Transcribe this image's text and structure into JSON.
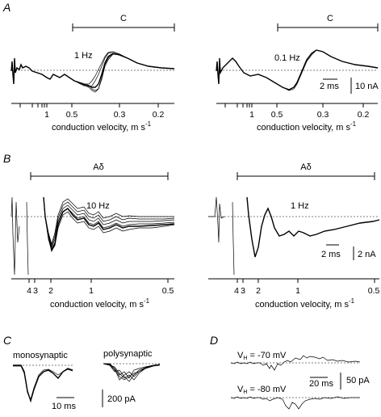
{
  "panels": {
    "A": {
      "label": "A",
      "left": {
        "bracket": "C",
        "freq": "1 Hz",
        "ticks": [
          "1",
          "0.5",
          "0.3",
          "0.2"
        ],
        "axis_label": "conduction velocity, m s",
        "axis_sup": "-1"
      },
      "right": {
        "bracket": "C",
        "freq": "0.1 Hz",
        "ticks": [
          "1",
          "0.5",
          "0.3",
          "0.2"
        ],
        "axis_label": "conduction velocity, m s",
        "axis_sup": "-1",
        "scale_time": "2 ms",
        "scale_amp": "10 nA"
      }
    },
    "B": {
      "label": "B",
      "left": {
        "bracket": "Aδ",
        "freq": "10 Hz",
        "ticks": [
          "4",
          "3",
          "2",
          "1",
          "0.5"
        ],
        "axis_label": "conduction velocity, m s",
        "axis_sup": "-1"
      },
      "right": {
        "bracket": "Aδ",
        "freq": "1 Hz",
        "ticks": [
          "4",
          "3",
          "2",
          "1",
          "0.5"
        ],
        "axis_label": "conduction velocity, m s",
        "axis_sup": "-1",
        "scale_time": "2 ms",
        "scale_amp": "2 nA"
      }
    },
    "C": {
      "label": "C",
      "mono": "monosynaptic",
      "poly": "polysynaptic",
      "scale_time": "10 ms",
      "scale_amp": "200 pA"
    },
    "D": {
      "label": "D",
      "v1_label": "V",
      "v1_sub": "H",
      "v1_value": " = -70 mV",
      "v2_label": "V",
      "v2_sub": "H",
      "v2_value": " = -80 mV",
      "scale_time": "20 ms",
      "scale_amp": "50 pA"
    }
  }
}
